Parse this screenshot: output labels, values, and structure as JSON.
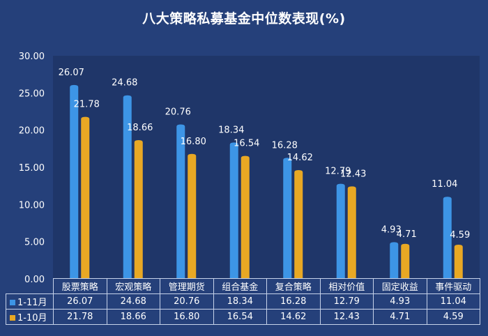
{
  "chart_data": {
    "type": "bar",
    "title": "八大策略私募基金中位数表现(%)",
    "categories": [
      "股票策略",
      "宏观策略",
      "管理期货",
      "组合基金",
      "复合策略",
      "相对价值",
      "固定收益",
      "事件驱动"
    ],
    "series": [
      {
        "name": "1-11月",
        "color": "#3d95e6",
        "values": [
          26.07,
          24.68,
          20.76,
          18.34,
          16.28,
          12.79,
          4.93,
          11.04
        ],
        "labels": [
          "26.07",
          "24.68",
          "20.76",
          "18.34",
          "16.28",
          "12.79",
          "4.93",
          "11.04"
        ]
      },
      {
        "name": "1-10月",
        "color": "#e8a824",
        "values": [
          21.78,
          18.66,
          16.8,
          16.54,
          14.62,
          12.43,
          4.71,
          4.59
        ],
        "labels": [
          "21.78",
          "18.66",
          "16.80",
          "16.54",
          "14.62",
          "12.43",
          "4.71",
          "4.59"
        ]
      }
    ],
    "yticks": [
      "0.00",
      "5.00",
      "10.00",
      "15.00",
      "20.00",
      "25.00",
      "30.00"
    ],
    "ylim": [
      0,
      30
    ],
    "grid": false,
    "legend": "data-table-below"
  }
}
